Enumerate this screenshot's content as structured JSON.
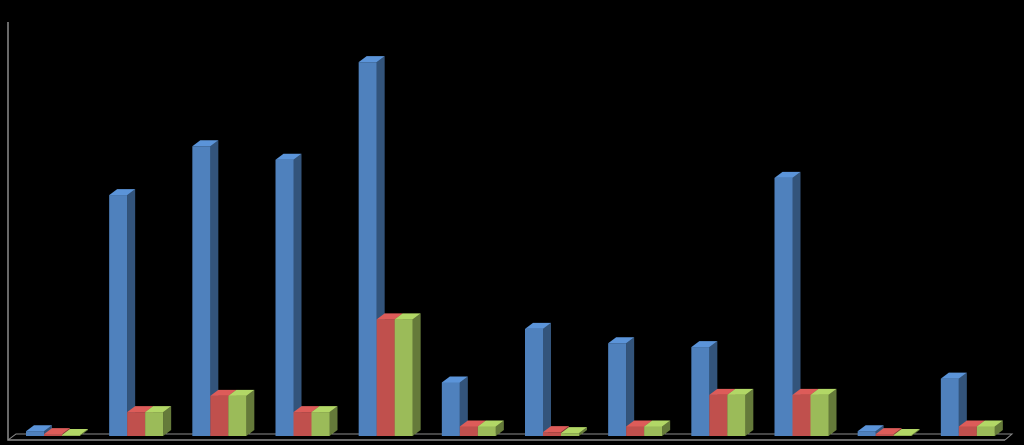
{
  "chart_data": {
    "type": "bar",
    "three_d": true,
    "categories": [
      null,
      null,
      null,
      null,
      null,
      null,
      null,
      null,
      null,
      null,
      null,
      null
    ],
    "ylim": [
      0,
      410
    ],
    "series": [
      {
        "color": "#4f81bd",
        "values": [
          5,
          252,
          303,
          289,
          391,
          56,
          112,
          97,
          93,
          270,
          5,
          60
        ]
      },
      {
        "color": "#c0504d",
        "values": [
          2,
          25,
          42,
          25,
          122,
          10,
          4,
          10,
          43,
          43,
          2,
          10
        ]
      },
      {
        "color": "#9bbb59",
        "values": [
          1,
          25,
          42,
          25,
          122,
          10,
          3,
          10,
          43,
          43,
          1,
          10
        ]
      }
    ]
  }
}
